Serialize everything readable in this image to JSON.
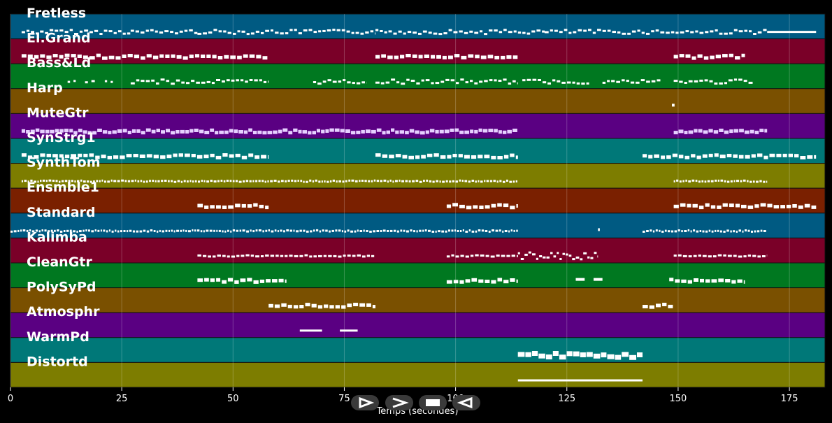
{
  "chart_data": {
    "type": "piano-roll",
    "xlabel": "Temps (secondes)",
    "xlim": [
      0,
      183
    ],
    "xticks": [
      0,
      25,
      50,
      75,
      100,
      125,
      150,
      175
    ],
    "grid": true,
    "tracks": [
      {
        "name": "Fretless",
        "color": "#005a82",
        "segments": [
          [
            2.5,
            27,
            "dense"
          ],
          [
            27,
            42,
            "dense"
          ],
          [
            42,
            82,
            "dense"
          ],
          [
            82,
            120,
            "dense"
          ],
          [
            120,
            170,
            "dense"
          ],
          [
            170,
            181,
            "sustain"
          ]
        ]
      },
      {
        "name": "El.Grand",
        "color": "#7a0028",
        "segments": [
          [
            2.5,
            58,
            "block"
          ],
          [
            82,
            114,
            "block"
          ],
          [
            149,
            165,
            "block"
          ]
        ]
      },
      {
        "name": "Bass&Ld",
        "color": "#007820",
        "segments": [
          [
            10,
            23,
            "sparse"
          ],
          [
            27,
            58,
            "dense"
          ],
          [
            68,
            80,
            "dense"
          ],
          [
            82,
            114,
            "dense"
          ],
          [
            115,
            130,
            "dense"
          ],
          [
            133,
            146,
            "dense"
          ],
          [
            149,
            167,
            "dense"
          ]
        ]
      },
      {
        "name": "Harp",
        "color": "#7a5000",
        "segments": [
          [
            148.6,
            149.2,
            "point"
          ]
        ]
      },
      {
        "name": "MuteGtr",
        "color": "#5a0082",
        "segments": [
          [
            2.5,
            114,
            "pale"
          ],
          [
            149,
            170,
            "pale"
          ]
        ]
      },
      {
        "name": "SynStrg1",
        "color": "#007878",
        "segments": [
          [
            2.5,
            58,
            "block"
          ],
          [
            82,
            114,
            "block"
          ],
          [
            142,
            181,
            "block"
          ]
        ]
      },
      {
        "name": "SynthTom",
        "color": "#7d7d00",
        "segments": [
          [
            2.5,
            114,
            "fine"
          ],
          [
            149,
            170,
            "fine"
          ]
        ]
      },
      {
        "name": "Ensmble1",
        "color": "#7a2000",
        "segments": [
          [
            42,
            58,
            "block"
          ],
          [
            98,
            114,
            "block"
          ],
          [
            149,
            181,
            "block"
          ]
        ]
      },
      {
        "name": "Standard",
        "color": "#005a82",
        "segments": [
          [
            0,
            114,
            "fine"
          ],
          [
            132,
            132.4,
            "point"
          ],
          [
            142,
            170,
            "fine"
          ]
        ]
      },
      {
        "name": "Kalimba",
        "color": "#7a0028",
        "segments": [
          [
            42,
            82,
            "dashed"
          ],
          [
            98,
            114,
            "dashed"
          ],
          [
            114,
            132,
            "wavy"
          ],
          [
            149,
            170,
            "dashed"
          ]
        ]
      },
      {
        "name": "CleanGtr",
        "color": "#007820",
        "segments": [
          [
            42,
            62,
            "block"
          ],
          [
            98,
            114,
            "block"
          ],
          [
            127,
            129,
            "point"
          ],
          [
            131,
            133,
            "point"
          ],
          [
            148,
            165,
            "block"
          ]
        ]
      },
      {
        "name": "PolySyPd",
        "color": "#7a5000",
        "segments": [
          [
            58,
            82,
            "block"
          ],
          [
            142,
            149,
            "block"
          ]
        ]
      },
      {
        "name": "Atmosphr",
        "color": "#5a0082",
        "segments": [
          [
            65,
            70,
            "line"
          ],
          [
            74,
            78,
            "line"
          ]
        ]
      },
      {
        "name": "WarmPd",
        "color": "#007878",
        "segments": [
          [
            114,
            142,
            "thick"
          ]
        ]
      },
      {
        "name": "Distortd",
        "color": "#7d7d00",
        "segments": [
          [
            114,
            142,
            "line"
          ]
        ]
      }
    ]
  },
  "player": {
    "play_glyph": "⊳",
    "forward_glyph": ">",
    "stop_glyph": "■",
    "back_glyph": "⊲"
  }
}
